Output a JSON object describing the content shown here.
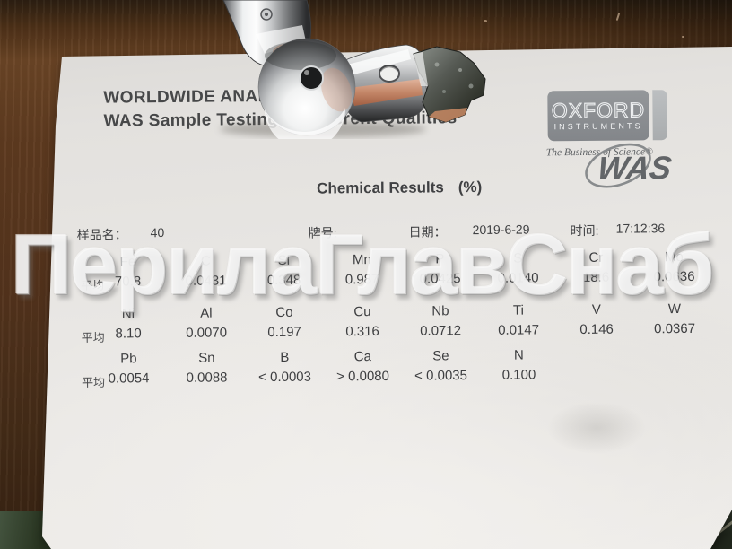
{
  "watermark": "ПерилаГлавСнаб",
  "header": {
    "line1": "WORLDWIDE ANALYT",
    "line2": "WAS Sample Testing of different Qualities"
  },
  "title": {
    "text": "Chemical Results",
    "unit": "(%)"
  },
  "info": {
    "sample_label": "样品名：",
    "sample_value": "40",
    "grade_label": "牌号:",
    "date_label": "日期：",
    "date_value": "2019-6-29",
    "time_label": "时间:",
    "time_value": "17:12:36"
  },
  "avg_label": "平均",
  "results": {
    "rows": [
      {
        "cells": [
          {
            "el": "Fe",
            "val": "70.8"
          },
          {
            "el": "C",
            "val": "0.0431"
          },
          {
            "el": "Si",
            "val": "0.348"
          },
          {
            "el": "Mn",
            "val": "0.987"
          },
          {
            "el": "P",
            "val": "0.0425"
          },
          {
            "el": "S",
            "val": "0.0140"
          },
          {
            "el": "Cr",
            "val": "18.6"
          },
          {
            "el": "Mo",
            "val": "0.0636"
          }
        ]
      },
      {
        "cells": [
          {
            "el": "Ni",
            "val": "8.10"
          },
          {
            "el": "Al",
            "val": "0.0070"
          },
          {
            "el": "Co",
            "val": "0.197"
          },
          {
            "el": "Cu",
            "val": "0.316"
          },
          {
            "el": "Nb",
            "val": "0.0712"
          },
          {
            "el": "Ti",
            "val": "0.0147"
          },
          {
            "el": "V",
            "val": "0.146"
          },
          {
            "el": "W",
            "val": "0.0367"
          }
        ]
      },
      {
        "cells": [
          {
            "el": "Pb",
            "val": "0.0054"
          },
          {
            "el": "Sn",
            "val": "0.0088"
          },
          {
            "el": "B",
            "val": "< 0.0003"
          },
          {
            "el": "Ca",
            "val": "> 0.0080"
          },
          {
            "el": "Se",
            "val": "< 0.0035"
          },
          {
            "el": "N",
            "val": "0.100"
          }
        ]
      }
    ]
  },
  "logo": {
    "brand": "OXFORD",
    "sub": "INSTRUMENTS",
    "tagline": "The Business of Science®",
    "mark": "WAS"
  },
  "colors": {
    "paper": "#eae8e5",
    "wood": "#5d3a20",
    "logo_gray": "#8f9296",
    "text": "#3d3e40",
    "copper": "#c98563",
    "watermark_white": "#ffffff"
  }
}
